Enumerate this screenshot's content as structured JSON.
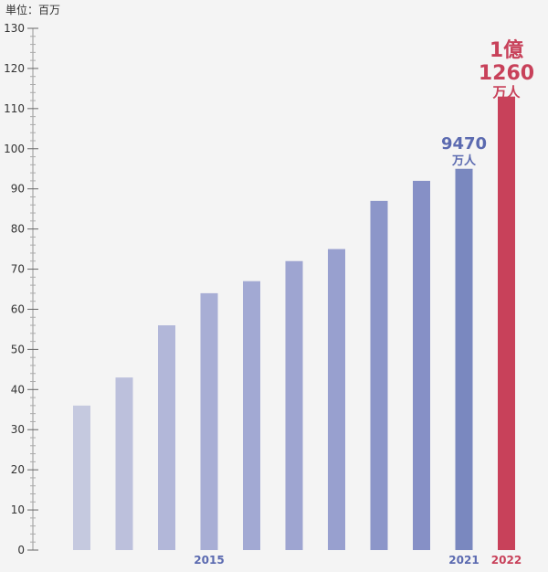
{
  "chart_data": {
    "type": "bar",
    "unit_label": "単位：百万",
    "categories": [
      "",
      "",
      "",
      "2015",
      "",
      "",
      "",
      "",
      "",
      "2021",
      "2022"
    ],
    "values": [
      36,
      43,
      56,
      64,
      67,
      72,
      75,
      87,
      92,
      95,
      113
    ],
    "ylim": [
      0,
      130
    ],
    "yticks": [
      0,
      10,
      20,
      30,
      40,
      50,
      60,
      70,
      80,
      90,
      100,
      110,
      120,
      130
    ],
    "bar_colors": [
      "#c5c9df",
      "#bcc0dc",
      "#b2b7d9",
      "#a8aed5",
      "#a2a9d3",
      "#9ea5d1",
      "#98a0cf",
      "#8c96c9",
      "#8690c6",
      "#7a88bf",
      "#c8415a"
    ],
    "label_colors": {
      "normal": "#5b6ab0",
      "highlight": "#c8415a"
    },
    "annotations": {
      "bar_2021": {
        "value_text": "9470",
        "unit_text": "万人"
      },
      "bar_2022": {
        "line1": "1億",
        "line2": "1260",
        "unit_text": "万人"
      }
    }
  }
}
